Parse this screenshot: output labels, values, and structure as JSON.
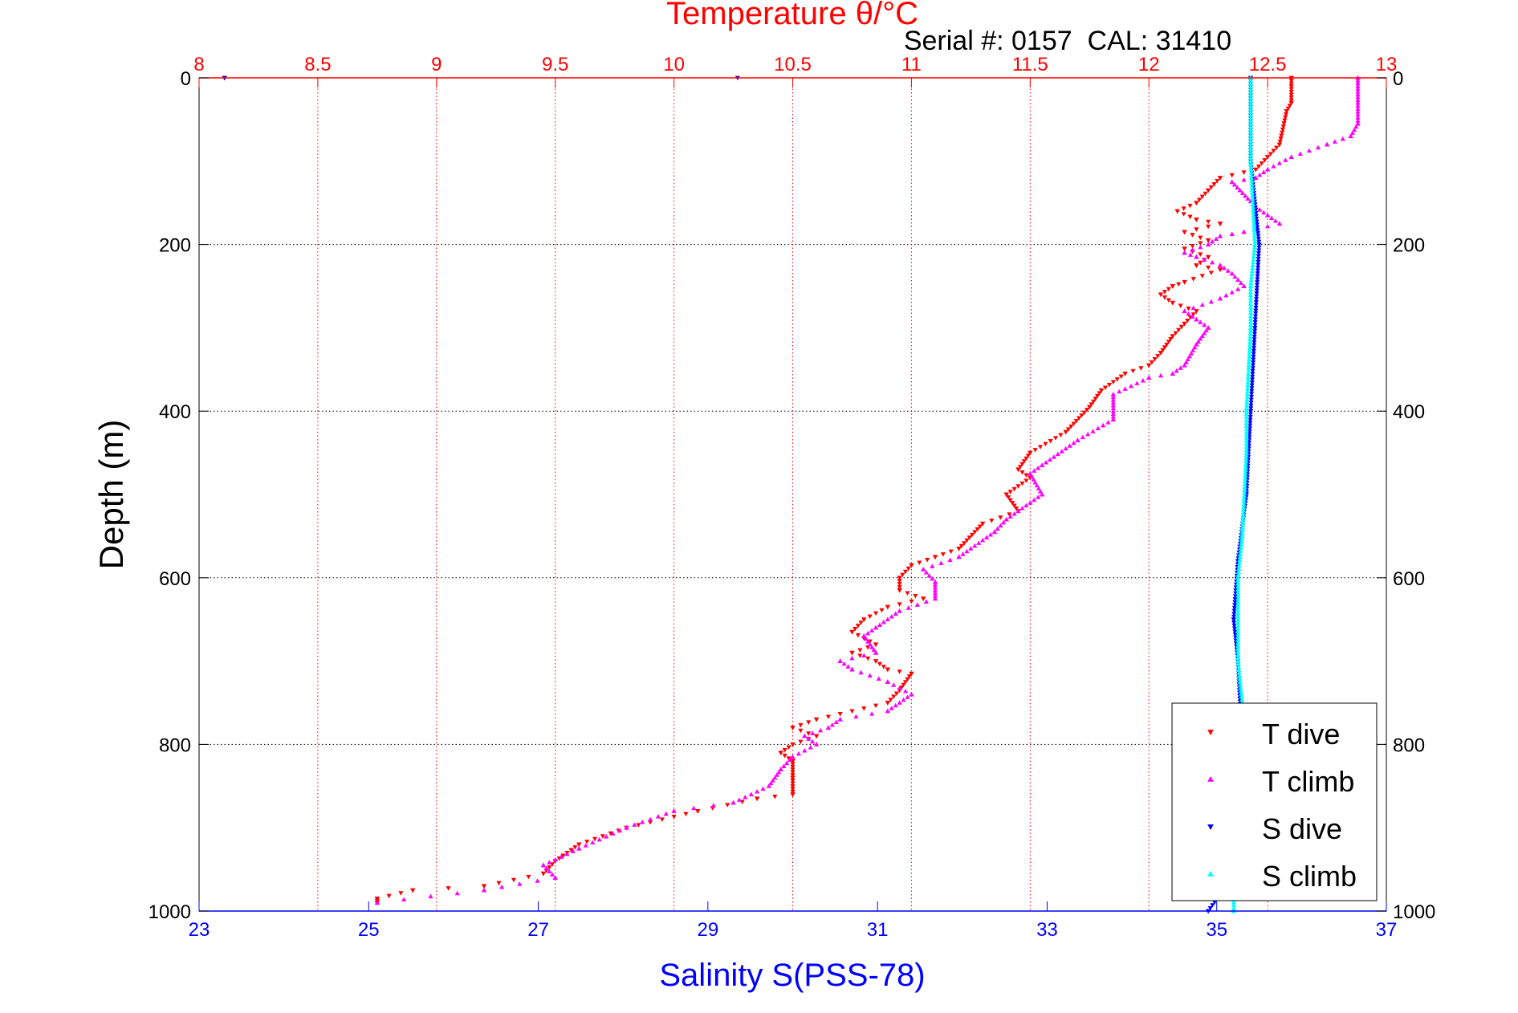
{
  "chart_data": {
    "type": "scatter",
    "title": "Temperature θ/°C",
    "subtitle": "Serial #: 0157  CAL: 31410",
    "ylabel": "Depth (m)",
    "xlabel_bottom": "Salinity S(PSS-78)",
    "y_axis": {
      "range": [
        0,
        1000
      ],
      "reversed": true,
      "ticks": [
        0,
        200,
        400,
        600,
        800,
        1000
      ]
    },
    "x_top_axis": {
      "quantity": "temperature",
      "range": [
        8,
        13
      ],
      "ticks": [
        8,
        8.5,
        9,
        9.5,
        10,
        10.5,
        11,
        11.5,
        12,
        12.5,
        13
      ],
      "color": "#ff0000"
    },
    "x_bottom_axis": {
      "quantity": "salinity",
      "range": [
        23,
        37
      ],
      "ticks": [
        23,
        25,
        27,
        29,
        31,
        33,
        35,
        37
      ],
      "color": "#0000ff"
    },
    "grid": true,
    "legend_position": "bottom-right",
    "series": [
      {
        "name": "T dive",
        "axis": "temperature",
        "color": "#ff0000",
        "marker": "triangle-down",
        "points": [
          [
            12.6,
            0
          ],
          [
            12.6,
            30
          ],
          [
            12.58,
            40
          ],
          [
            12.55,
            80
          ],
          [
            12.5,
            95
          ],
          [
            12.45,
            110
          ],
          [
            12.3,
            120
          ],
          [
            12.25,
            135
          ],
          [
            12.2,
            150
          ],
          [
            12.12,
            160
          ],
          [
            12.2,
            170
          ],
          [
            12.3,
            175
          ],
          [
            12.15,
            185
          ],
          [
            12.25,
            195
          ],
          [
            12.15,
            205
          ],
          [
            12.25,
            215
          ],
          [
            12.2,
            225
          ],
          [
            12.3,
            230
          ],
          [
            12.15,
            245
          ],
          [
            12.1,
            250
          ],
          [
            12.05,
            260
          ],
          [
            12.1,
            270
          ],
          [
            12.2,
            280
          ],
          [
            12.15,
            295
          ],
          [
            12.1,
            310
          ],
          [
            12.05,
            330
          ],
          [
            12.0,
            345
          ],
          [
            11.9,
            355
          ],
          [
            11.8,
            375
          ],
          [
            11.75,
            395
          ],
          [
            11.65,
            425
          ],
          [
            11.5,
            450
          ],
          [
            11.45,
            470
          ],
          [
            11.5,
            480
          ],
          [
            11.4,
            500
          ],
          [
            11.45,
            520
          ],
          [
            11.3,
            535
          ],
          [
            11.2,
            565
          ],
          [
            11.1,
            575
          ],
          [
            11.0,
            585
          ],
          [
            10.95,
            600
          ],
          [
            10.95,
            615
          ],
          [
            11.05,
            625
          ],
          [
            10.9,
            635
          ],
          [
            10.8,
            650
          ],
          [
            10.75,
            665
          ],
          [
            10.85,
            680
          ],
          [
            10.75,
            690
          ],
          [
            10.85,
            700
          ],
          [
            10.9,
            710
          ],
          [
            11.0,
            715
          ],
          [
            10.95,
            735
          ],
          [
            10.9,
            750
          ],
          [
            10.6,
            770
          ],
          [
            10.5,
            780
          ],
          [
            10.6,
            790
          ],
          [
            10.5,
            800
          ],
          [
            10.45,
            810
          ],
          [
            10.5,
            820
          ],
          [
            10.5,
            840
          ],
          [
            10.5,
            860
          ],
          [
            10.35,
            865
          ],
          [
            10.1,
            880
          ],
          [
            9.8,
            900
          ],
          [
            9.6,
            920
          ],
          [
            9.5,
            940
          ],
          [
            9.45,
            955
          ],
          [
            9.2,
            970
          ],
          [
            8.9,
            975
          ],
          [
            8.75,
            985
          ],
          [
            8.75,
            990
          ]
        ]
      },
      {
        "name": "T climb",
        "axis": "temperature",
        "color": "#ff00ff",
        "marker": "triangle-up",
        "points": [
          [
            12.88,
            0
          ],
          [
            12.88,
            30
          ],
          [
            12.88,
            55
          ],
          [
            12.85,
            70
          ],
          [
            12.75,
            80
          ],
          [
            12.6,
            95
          ],
          [
            12.5,
            110
          ],
          [
            12.45,
            120
          ],
          [
            12.35,
            125
          ],
          [
            12.45,
            155
          ],
          [
            12.5,
            165
          ],
          [
            12.55,
            175
          ],
          [
            12.4,
            185
          ],
          [
            12.3,
            190
          ],
          [
            12.25,
            200
          ],
          [
            12.15,
            210
          ],
          [
            12.2,
            215
          ],
          [
            12.3,
            225
          ],
          [
            12.35,
            235
          ],
          [
            12.4,
            250
          ],
          [
            12.3,
            265
          ],
          [
            12.15,
            280
          ],
          [
            12.2,
            290
          ],
          [
            12.25,
            300
          ],
          [
            12.2,
            320
          ],
          [
            12.15,
            345
          ],
          [
            12.1,
            355
          ],
          [
            12.0,
            360
          ],
          [
            11.85,
            380
          ],
          [
            11.85,
            410
          ],
          [
            11.7,
            435
          ],
          [
            11.55,
            465
          ],
          [
            11.5,
            475
          ],
          [
            11.55,
            500
          ],
          [
            11.4,
            530
          ],
          [
            11.35,
            545
          ],
          [
            11.2,
            575
          ],
          [
            11.05,
            590
          ],
          [
            11.1,
            605
          ],
          [
            11.1,
            625
          ],
          [
            10.95,
            640
          ],
          [
            10.85,
            660
          ],
          [
            10.8,
            670
          ],
          [
            10.85,
            690
          ],
          [
            10.7,
            700
          ],
          [
            10.75,
            710
          ],
          [
            10.9,
            725
          ],
          [
            11.0,
            740
          ],
          [
            10.9,
            760
          ],
          [
            10.7,
            770
          ],
          [
            10.65,
            780
          ],
          [
            10.55,
            790
          ],
          [
            10.6,
            800
          ],
          [
            10.5,
            815
          ],
          [
            10.45,
            830
          ],
          [
            10.4,
            850
          ],
          [
            10.25,
            870
          ],
          [
            10.0,
            880
          ],
          [
            9.8,
            900
          ],
          [
            9.6,
            925
          ],
          [
            9.45,
            945
          ],
          [
            9.5,
            960
          ],
          [
            9.2,
            975
          ],
          [
            8.75,
            990
          ]
        ]
      },
      {
        "name": "S dive",
        "axis": "salinity",
        "color": "#0000ff",
        "marker": "triangle-down",
        "points": [
          [
            23.3,
            0
          ],
          [
            35.4,
            0
          ],
          [
            35.4,
            100
          ],
          [
            35.5,
            200
          ],
          [
            35.45,
            300
          ],
          [
            35.4,
            400
          ],
          [
            35.35,
            500
          ],
          [
            35.25,
            580
          ],
          [
            35.2,
            650
          ],
          [
            35.25,
            700
          ],
          [
            35.3,
            800
          ],
          [
            35.2,
            900
          ],
          [
            35.25,
            950
          ],
          [
            34.9,
            1000
          ]
        ]
      },
      {
        "name": "S climb",
        "axis": "salinity",
        "color": "#00ffff",
        "marker": "triangle-up",
        "points": [
          [
            35.4,
            0
          ],
          [
            35.4,
            100
          ],
          [
            35.45,
            200
          ],
          [
            35.4,
            250
          ],
          [
            35.4,
            300
          ],
          [
            35.35,
            400
          ],
          [
            35.35,
            450
          ],
          [
            35.3,
            550
          ],
          [
            35.25,
            600
          ],
          [
            35.25,
            650
          ],
          [
            35.25,
            700
          ],
          [
            35.3,
            750
          ],
          [
            35.25,
            800
          ],
          [
            35.2,
            900
          ],
          [
            35.2,
            1000
          ]
        ]
      }
    ]
  }
}
